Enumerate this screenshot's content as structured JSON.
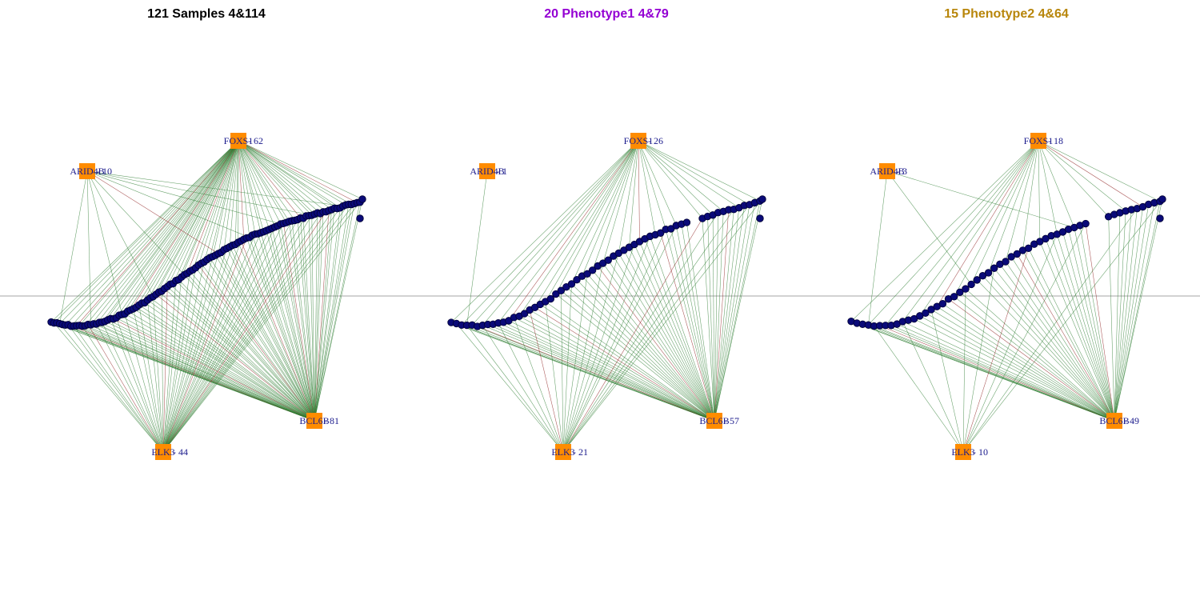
{
  "colors": {
    "hub_fill": "#ff8c00",
    "node_fill": "#0a0a78",
    "node_stroke": "#000033",
    "label": "#1a1a8c",
    "edge_positive": "#2e7d32",
    "edge_negative": "#8b1a1a",
    "baseline": "#888888"
  },
  "panels": [
    {
      "title": "121 Samples 4&114",
      "title_color": "#000000",
      "hubs": [
        {
          "name": "FOXS1",
          "count": "62"
        },
        {
          "name": "ARID4B",
          "count": "10"
        },
        {
          "name": "BCL6B",
          "count": "81"
        },
        {
          "name": "ELK3",
          "count": "44"
        }
      ]
    },
    {
      "title": "20 Phenotype1 4&79",
      "title_color": "#9400d3",
      "hubs": [
        {
          "name": "FOXS1",
          "count": "26"
        },
        {
          "name": "ARID4B",
          "count": "1"
        },
        {
          "name": "BCL6B",
          "count": "57"
        },
        {
          "name": "ELK3",
          "count": "21"
        }
      ]
    },
    {
      "title": "15 Phenotype2 4&64",
      "title_color": "#b8860b",
      "hubs": [
        {
          "name": "FOXS1",
          "count": "18"
        },
        {
          "name": "ARID4B",
          "count": "3"
        },
        {
          "name": "BCL6B",
          "count": "49"
        },
        {
          "name": "ELK3",
          "count": "10"
        }
      ]
    }
  ]
}
